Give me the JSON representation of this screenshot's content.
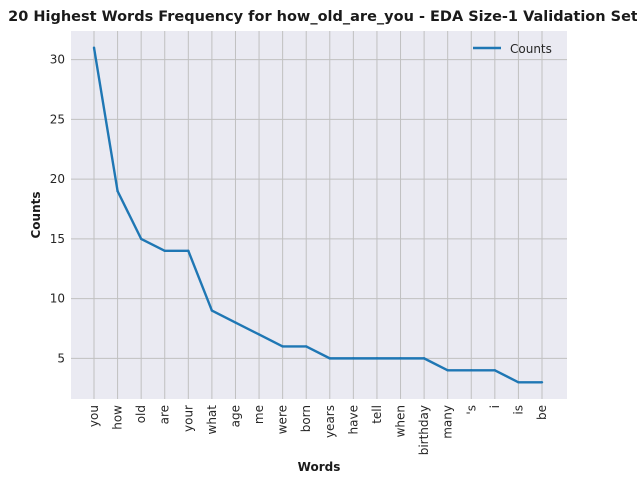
{
  "chart_data": {
    "type": "line",
    "title": "20 Highest Words Frequency for how_old_are_you - EDA Size-1 Validation Set",
    "xlabel": "Words",
    "ylabel": "Counts",
    "categories": [
      "you",
      "how",
      "old",
      "are",
      "your",
      "what",
      "age",
      "me",
      "were",
      "born",
      "years",
      "have",
      "tell",
      "when",
      "birthday",
      "many",
      "'s",
      "i",
      "is",
      "be"
    ],
    "series": [
      {
        "name": "Counts",
        "values": [
          31,
          19,
          15,
          14,
          14,
          9,
          8,
          7,
          6,
          6,
          5,
          5,
          5,
          5,
          5,
          4,
          4,
          4,
          3,
          3
        ],
        "color": "#1f77b4"
      }
    ],
    "ylim": [
      1.6,
      32.4
    ],
    "yticks": [
      5,
      10,
      15,
      20,
      25,
      30
    ],
    "grid": true,
    "legend": "top-right",
    "background_color": "#eaeaf2",
    "grid_color": "#c0c0c0"
  }
}
